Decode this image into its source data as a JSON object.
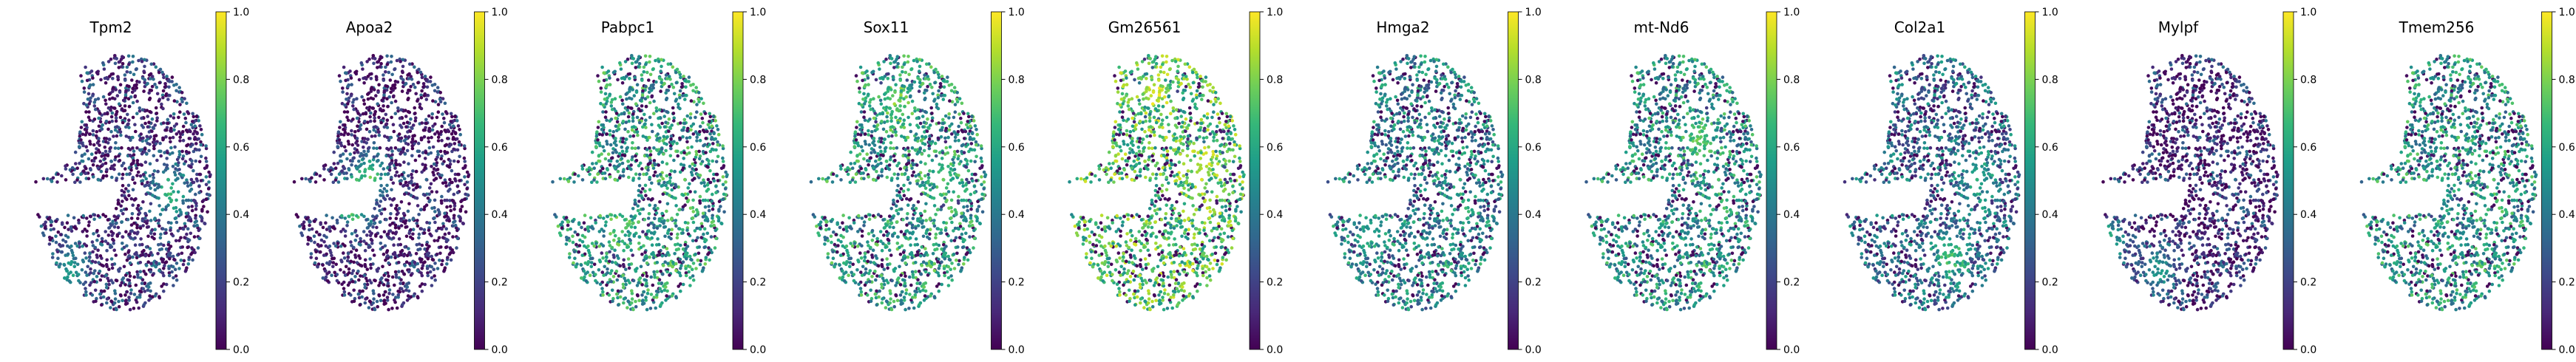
{
  "chart_data": {
    "type": "scatter",
    "description_kind": "spatial expression maps",
    "colormap": "viridis",
    "colormap_stops": [
      "#440154",
      "#482878",
      "#3e4989",
      "#31688e",
      "#26828e",
      "#1f9e89",
      "#35b779",
      "#6ece58",
      "#b5de2b",
      "#fde725"
    ],
    "colorbar": {
      "range": [
        0.0,
        1.0
      ],
      "ticks": [
        "0.0",
        "0.2",
        "0.4",
        "0.6",
        "0.8",
        "1.0"
      ]
    },
    "axes_visible": false,
    "panels": [
      {
        "title": "Tpm2",
        "mean_expression": 0.18,
        "hotspots": [
          {
            "u": 0.8,
            "v": 0.55,
            "level": 0.65
          },
          {
            "u": 0.3,
            "v": 0.85,
            "level": 0.55
          }
        ]
      },
      {
        "title": "Apoa2",
        "mean_expression": 0.12,
        "hotspots": [
          {
            "u": 0.42,
            "v": 0.6,
            "level": 0.85
          },
          {
            "u": 0.5,
            "v": 0.5,
            "level": 0.75
          }
        ]
      },
      {
        "title": "Pabpc1",
        "mean_expression": 0.55,
        "hotspots": [
          {
            "u": 0.45,
            "v": 0.68,
            "level": 0.75
          }
        ]
      },
      {
        "title": "Sox11",
        "mean_expression": 0.55,
        "hotspots": [
          {
            "u": 0.55,
            "v": 0.22,
            "level": 0.8
          },
          {
            "u": 0.8,
            "v": 0.5,
            "level": 0.7
          }
        ]
      },
      {
        "title": "Gm26561",
        "mean_expression": 0.7,
        "hotspots": [
          {
            "u": 0.55,
            "v": 0.18,
            "level": 0.95
          },
          {
            "u": 0.2,
            "v": 0.3,
            "level": 0.9
          },
          {
            "u": 0.8,
            "v": 0.45,
            "level": 0.9
          }
        ]
      },
      {
        "title": "Hmga2",
        "mean_expression": 0.45,
        "hotspots": [
          {
            "u": 0.35,
            "v": 0.7,
            "level": 0.6
          }
        ]
      },
      {
        "title": "mt-Nd6",
        "mean_expression": 0.5,
        "hotspots": [
          {
            "u": 0.7,
            "v": 0.35,
            "level": 0.75
          }
        ]
      },
      {
        "title": "Col2a1",
        "mean_expression": 0.35,
        "hotspots": [
          {
            "u": 0.65,
            "v": 0.8,
            "level": 0.7
          },
          {
            "u": 0.8,
            "v": 0.5,
            "level": 0.6
          }
        ]
      },
      {
        "title": "Mylpf",
        "mean_expression": 0.15,
        "hotspots": [
          {
            "u": 0.15,
            "v": 0.75,
            "level": 0.65
          },
          {
            "u": 0.4,
            "v": 0.85,
            "level": 0.55
          }
        ]
      },
      {
        "title": "Tmem256",
        "mean_expression": 0.52,
        "hotspots": [
          {
            "u": 0.5,
            "v": 0.55,
            "level": 0.65
          }
        ]
      }
    ]
  }
}
